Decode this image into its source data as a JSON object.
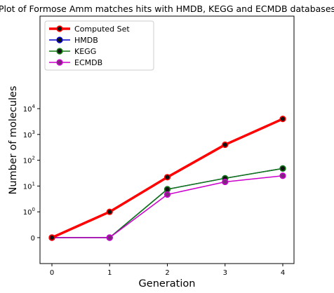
{
  "chart_data": {
    "type": "line",
    "title": "Plot of Formose Amm matches hits with HMDB, KEGG and ECMDB databases",
    "xlabel": "Generation",
    "ylabel": "Number of molecules",
    "x": [
      0,
      1,
      2,
      3,
      4
    ],
    "xticks": [
      "0",
      "1",
      "2",
      "3",
      "4"
    ],
    "yscale": "symlog",
    "yticks": [
      {
        "value": 0,
        "base": "0",
        "exp": ""
      },
      {
        "value": 1,
        "base": "10",
        "exp": "0"
      },
      {
        "value": 10,
        "base": "10",
        "exp": "1"
      },
      {
        "value": 100,
        "base": "10",
        "exp": "2"
      },
      {
        "value": 1000,
        "base": "10",
        "exp": "3"
      },
      {
        "value": 10000,
        "base": "10",
        "exp": "4"
      }
    ],
    "grid": false,
    "legend_position": "top-left",
    "series": [
      {
        "name": "Computed Set",
        "values": [
          0,
          1,
          22,
          400,
          4000
        ],
        "color": "#ff0000",
        "marker_face": "#111111",
        "line": "thick"
      },
      {
        "name": "HMDB",
        "values": [
          0,
          0,
          7.5,
          20,
          48
        ],
        "color": "#0000cc",
        "marker_face": "#111111",
        "line": "normal"
      },
      {
        "name": "KEGG",
        "values": [
          0,
          0,
          7.5,
          20,
          48
        ],
        "color": "#117a11",
        "marker_face": "#111111",
        "line": "normal"
      },
      {
        "name": "ECMDB",
        "values": [
          0,
          0,
          4.7,
          14.5,
          25
        ],
        "color": "#cc00cc",
        "marker_face": "#7a2a7a",
        "line": "normal"
      }
    ]
  }
}
